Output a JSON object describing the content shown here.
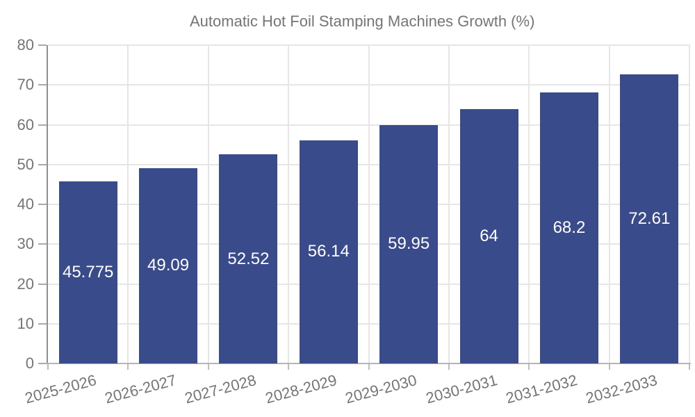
{
  "legend": {
    "label": "Automatic Hot Foil Stamping Machines Growth (%)"
  },
  "chart_data": {
    "type": "bar",
    "title": "",
    "xlabel": "",
    "ylabel": "",
    "series_name": "Automatic Hot Foil Stamping Machines Growth (%)",
    "categories": [
      "2025-2026",
      "2026-2027",
      "2027-2028",
      "2028-2029",
      "2029-2030",
      "2030-2031",
      "2031-2032",
      "2032-2033"
    ],
    "values": [
      45.775,
      49.09,
      52.52,
      56.14,
      59.95,
      64,
      68.2,
      72.61
    ],
    "value_labels": [
      "45.775",
      "49.09",
      "52.52",
      "56.14",
      "59.95",
      "64",
      "68.2",
      "72.61"
    ],
    "ylim": [
      0,
      80
    ],
    "yticks": [
      0,
      10,
      20,
      30,
      40,
      50,
      60,
      70,
      80
    ],
    "grid": true,
    "legend_position": "top",
    "bar_color": "#3A4B8C",
    "value_label_color": "#ffffff",
    "axis_label_color": "#757575",
    "grid_color": "#e6e6e6"
  }
}
